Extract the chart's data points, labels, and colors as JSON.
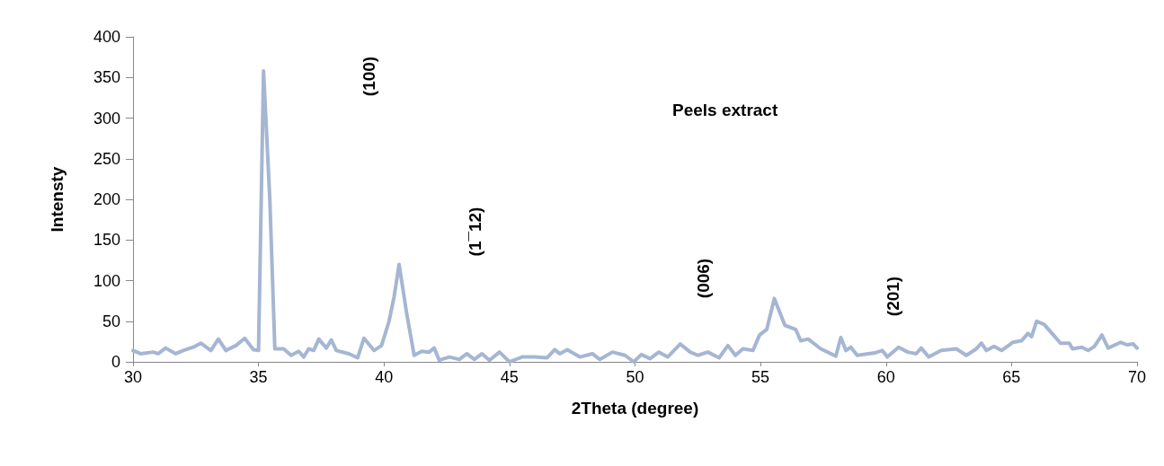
{
  "chart_data": {
    "type": "line",
    "title": "Peels extract",
    "xlabel": "2Theta (degree)",
    "ylabel": "Intensty",
    "xlim": [
      30,
      70
    ],
    "xticks": [
      30,
      35,
      40,
      45,
      50,
      55,
      60,
      65,
      70
    ],
    "ylim": [
      0,
      400
    ],
    "yticks": [
      0,
      50,
      100,
      150,
      200,
      250,
      300,
      350,
      400
    ],
    "grid": false,
    "marker": "none",
    "line_style": "solid",
    "annotations": [
      "(100)",
      "(1¯12)",
      "(006)",
      "(201)"
    ],
    "series": [
      {
        "color": "#a5b6d3",
        "x": [
          30.0,
          30.3,
          30.8,
          31.0,
          31.3,
          31.7,
          32.0,
          32.4,
          32.7,
          33.1,
          33.4,
          33.7,
          34.1,
          34.45,
          34.8,
          35.0,
          35.2,
          35.45,
          35.65,
          36.0,
          36.3,
          36.6,
          36.8,
          37.0,
          37.2,
          37.4,
          37.7,
          37.9,
          38.1,
          38.6,
          38.95,
          39.2,
          39.6,
          39.9,
          40.2,
          40.4,
          40.6,
          40.9,
          41.2,
          41.5,
          41.8,
          42.0,
          42.2,
          42.6,
          43.0,
          43.3,
          43.6,
          43.9,
          44.2,
          44.6,
          45.0,
          45.5,
          46.0,
          46.5,
          46.8,
          47.0,
          47.3,
          47.8,
          48.3,
          48.6,
          49.1,
          49.6,
          49.95,
          50.25,
          50.6,
          50.95,
          51.3,
          51.8,
          52.2,
          52.5,
          52.9,
          53.35,
          53.7,
          54.0,
          54.3,
          54.7,
          54.96,
          55.25,
          55.55,
          55.97,
          56.4,
          56.6,
          56.9,
          57.4,
          58.0,
          58.2,
          58.4,
          58.6,
          58.85,
          59.55,
          59.85,
          60.05,
          60.5,
          60.87,
          61.2,
          61.4,
          61.7,
          62.2,
          62.8,
          63.2,
          63.6,
          63.8,
          64.0,
          64.3,
          64.6,
          65.05,
          65.4,
          65.65,
          65.8,
          66.0,
          66.3,
          66.67,
          66.95,
          67.3,
          67.43,
          67.8,
          68.05,
          68.3,
          68.6,
          68.85,
          69.35,
          69.6,
          69.85,
          70.0
        ],
        "values": [
          14,
          10,
          12,
          10,
          17,
          10,
          14,
          18,
          23,
          14,
          28,
          14,
          20,
          29,
          15,
          14,
          358,
          200,
          16,
          16,
          8,
          13,
          6,
          16,
          14,
          28,
          17,
          27,
          14,
          10,
          5,
          29,
          14,
          20,
          50,
          80,
          120,
          60,
          8,
          13,
          12,
          17,
          2,
          6,
          3,
          10,
          3,
          10,
          2,
          12,
          0,
          6,
          6,
          5,
          15,
          10,
          15,
          6,
          10,
          3,
          12,
          8,
          0,
          9,
          4,
          12,
          6,
          22,
          12,
          8,
          12,
          5,
          20,
          8,
          16,
          14,
          33,
          40,
          78,
          45,
          40,
          26,
          28,
          16,
          7,
          30,
          14,
          18,
          8,
          11,
          14,
          6,
          18,
          12,
          10,
          17,
          6,
          14,
          16,
          8,
          16,
          23,
          14,
          19,
          14,
          24,
          26,
          35,
          31,
          50,
          46,
          33,
          23,
          23,
          16,
          18,
          14,
          19,
          33,
          17,
          24,
          21,
          22,
          17
        ]
      }
    ]
  }
}
